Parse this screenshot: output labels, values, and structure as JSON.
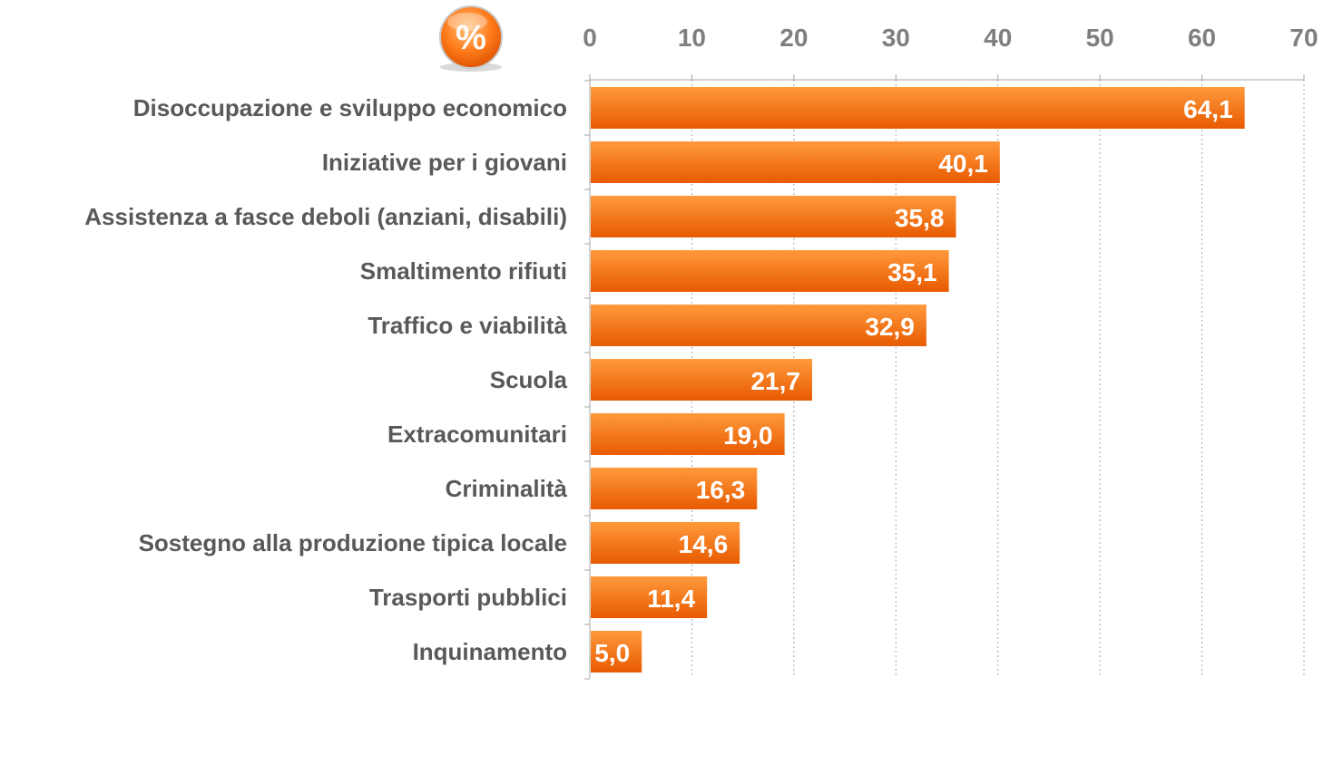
{
  "badge": {
    "symbol": "%",
    "icon": "percent-badge-icon"
  },
  "colors": {
    "bar_light": "#ff9a3c",
    "bar_dark": "#e85a00",
    "grid": "#a6a6a6",
    "axis_text": "#7f7f7f",
    "label_text": "#595959"
  },
  "chart_data": {
    "type": "bar",
    "orientation": "horizontal",
    "title": "",
    "xlabel": "",
    "ylabel": "",
    "xlim": [
      0,
      70
    ],
    "ticks": [
      "0",
      "10",
      "20",
      "30",
      "40",
      "50",
      "60",
      "70"
    ],
    "axis_position": "top",
    "grid": true,
    "categories": [
      "Disoccupazione e sviluppo economico",
      "Iniziative per i giovani",
      "Assistenza a fasce deboli (anziani, disabili)",
      "Smaltimento rifiuti",
      "Traffico e viabilità",
      "Scuola",
      "Extracomunitari",
      "Criminalità",
      "Sostegno alla produzione tipica locale",
      "Trasporti pubblici",
      "Inquinamento"
    ],
    "values": [
      64.1,
      40.1,
      35.8,
      35.1,
      32.9,
      21.7,
      19.0,
      16.3,
      14.6,
      11.4,
      5.0
    ],
    "value_labels": [
      "64,1",
      "40,1",
      "35,8",
      "35,1",
      "32,9",
      "21,7",
      "19,0",
      "16,3",
      "14,6",
      "11,4",
      "5,0"
    ]
  }
}
